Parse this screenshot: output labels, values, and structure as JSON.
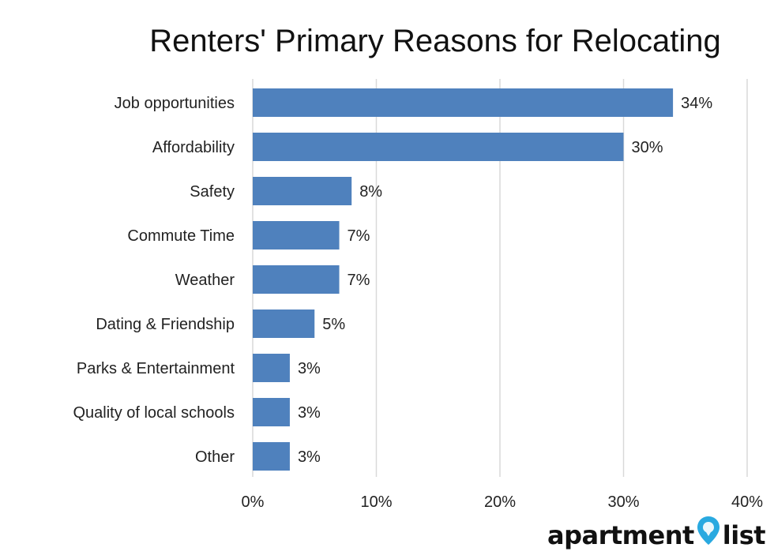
{
  "chart_data": {
    "type": "bar",
    "orientation": "horizontal",
    "title": "Renters' Primary Reasons for Relocating",
    "categories": [
      "Job opportunities",
      "Affordability",
      "Safety",
      "Commute Time",
      "Weather",
      "Dating & Friendship",
      "Parks & Entertainment",
      "Quality of local schools",
      "Other"
    ],
    "values": [
      34,
      30,
      8,
      7,
      7,
      5,
      3,
      3,
      3
    ],
    "value_labels": [
      "34%",
      "30%",
      "8%",
      "7%",
      "7%",
      "5%",
      "3%",
      "3%",
      "3%"
    ],
    "xlim": [
      0,
      40
    ],
    "x_ticks": [
      0,
      10,
      20,
      30,
      40
    ],
    "x_tick_labels": [
      "0%",
      "10%",
      "20%",
      "30%",
      "40%"
    ],
    "grid": true,
    "bar_color": "#4f81bd",
    "xlabel": "",
    "ylabel": ""
  },
  "logo": {
    "text_left": "apartment",
    "text_right": "list",
    "pin_color": "#29a9e0",
    "icon": "map-pin-icon"
  }
}
